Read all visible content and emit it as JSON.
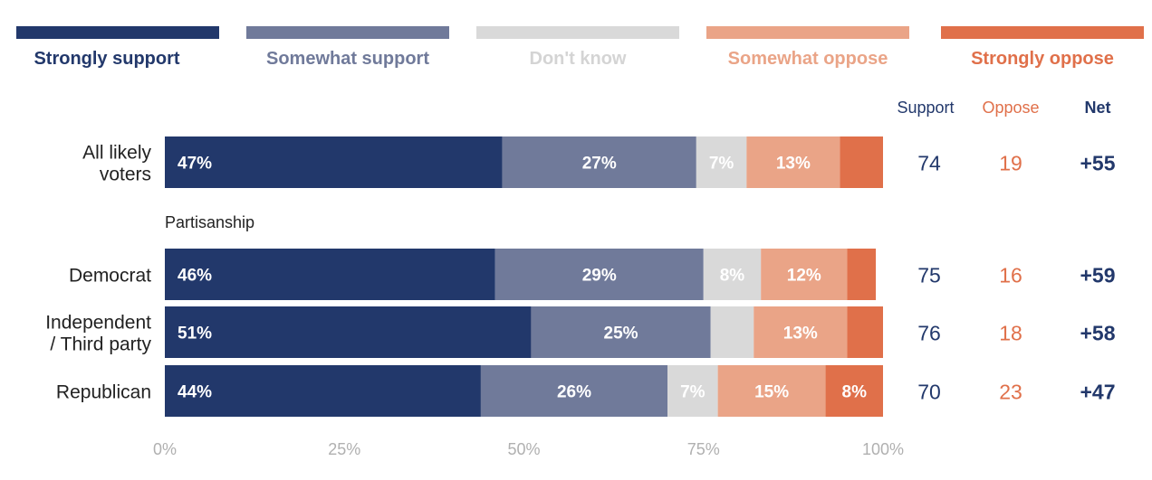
{
  "chart_data": {
    "type": "bar",
    "stacked": true,
    "orientation": "horizontal",
    "legend": {
      "placement": "top",
      "items": [
        {
          "name": "Strongly support",
          "color": "#22386b",
          "text_color": "#22386b"
        },
        {
          "name": "Somewhat support",
          "color": "#707a9a",
          "text_color": "#707a9a"
        },
        {
          "name": "Don't know",
          "color": "#d9d9d9",
          "text_color": "#d4d4d4"
        },
        {
          "name": "Somewhat oppose",
          "color": "#eaa487",
          "text_color": "#eaa487"
        },
        {
          "name": "Strongly oppose",
          "color": "#e0704a",
          "text_color": "#e0704a"
        }
      ]
    },
    "groups": [
      {
        "label": "",
        "rows": [
          {
            "label_lines": [
              "All likely",
              "voters"
            ],
            "values": [
              47,
              27,
              7,
              13,
              6
            ],
            "labels": [
              "47%",
              "27%",
              "7%",
              "13%",
              ""
            ],
            "support": "74",
            "oppose": "19",
            "net": "+55"
          }
        ]
      },
      {
        "label": "Partisanship",
        "rows": [
          {
            "label_lines": [
              "Democrat"
            ],
            "values": [
              46,
              29,
              8,
              12,
              4
            ],
            "labels": [
              "46%",
              "29%",
              "8%",
              "12%",
              ""
            ],
            "support": "75",
            "oppose": "16",
            "net": "+59"
          },
          {
            "label_lines": [
              "Independent",
              "/ Third party"
            ],
            "values": [
              51,
              25,
              6,
              13,
              5
            ],
            "labels": [
              "51%",
              "25%",
              "",
              "13%",
              ""
            ],
            "support": "76",
            "oppose": "18",
            "net": "+58"
          },
          {
            "label_lines": [
              "Republican"
            ],
            "values": [
              44,
              26,
              7,
              15,
              8
            ],
            "labels": [
              "44%",
              "26%",
              "7%",
              "15%",
              "8%"
            ],
            "support": "70",
            "oppose": "23",
            "net": "+47"
          }
        ]
      }
    ],
    "summary_headers": {
      "support": "Support",
      "oppose": "Oppose",
      "net": "Net"
    },
    "summary_colors": {
      "support": "#22386b",
      "oppose": "#e0704a",
      "net": "#22386b"
    },
    "xlim": [
      0,
      100
    ],
    "xticks": [
      {
        "value": 0,
        "label": "0%"
      },
      {
        "value": 25,
        "label": "25%"
      },
      {
        "value": 50,
        "label": "50%"
      },
      {
        "value": 75,
        "label": "75%"
      },
      {
        "value": 100,
        "label": "100%"
      }
    ],
    "grid": false
  }
}
